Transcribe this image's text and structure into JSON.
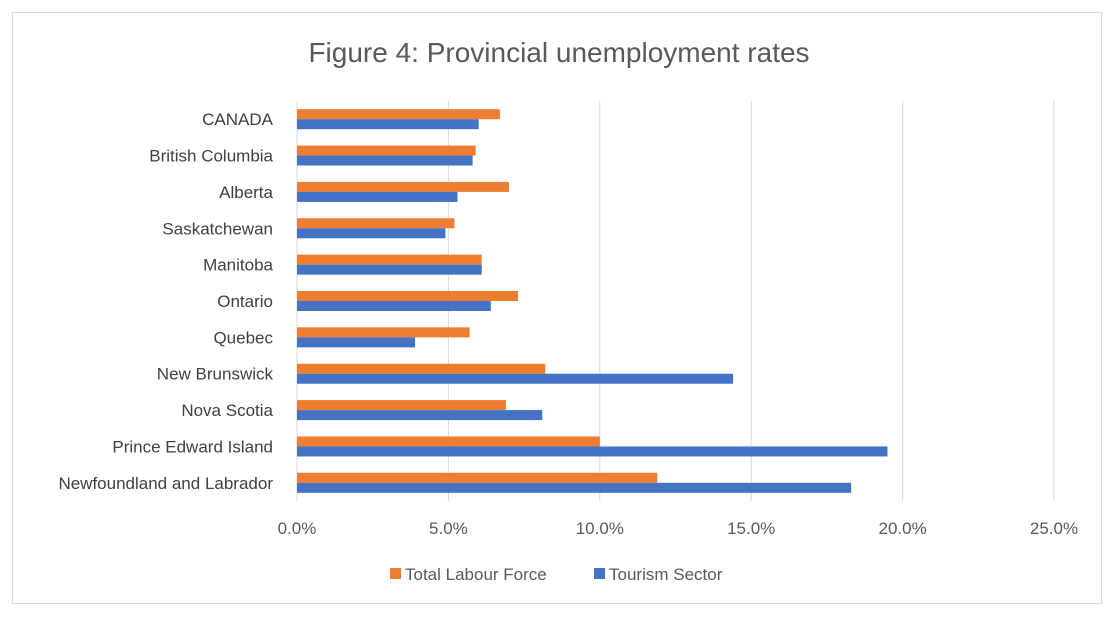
{
  "chart_data": {
    "type": "bar",
    "orientation": "horizontal",
    "title": "Figure 4: Provincial unemployment rates",
    "categories": [
      "CANADA",
      "British Columbia",
      "Alberta",
      "Saskatchewan",
      "Manitoba",
      "Ontario",
      "Quebec",
      "New Brunswick",
      "Nova Scotia",
      "Prince Edward Island",
      "Newfoundland and Labrador"
    ],
    "series": [
      {
        "name": "Total Labour Force",
        "color": "#ed7d31",
        "values": [
          6.7,
          5.9,
          7.0,
          5.2,
          6.1,
          7.3,
          5.7,
          8.2,
          6.9,
          10.0,
          11.9
        ]
      },
      {
        "name": "Tourism Sector",
        "color": "#4472c4",
        "values": [
          6.0,
          5.8,
          5.3,
          4.9,
          6.1,
          6.4,
          3.9,
          14.4,
          8.1,
          19.5,
          18.3
        ]
      }
    ],
    "xlim": [
      0,
      25
    ],
    "xticks": [
      "0.0%",
      "5.0%",
      "10.0%",
      "15.0%",
      "20.0%",
      "25.0%"
    ],
    "grid": true,
    "legend_position": "bottom"
  }
}
